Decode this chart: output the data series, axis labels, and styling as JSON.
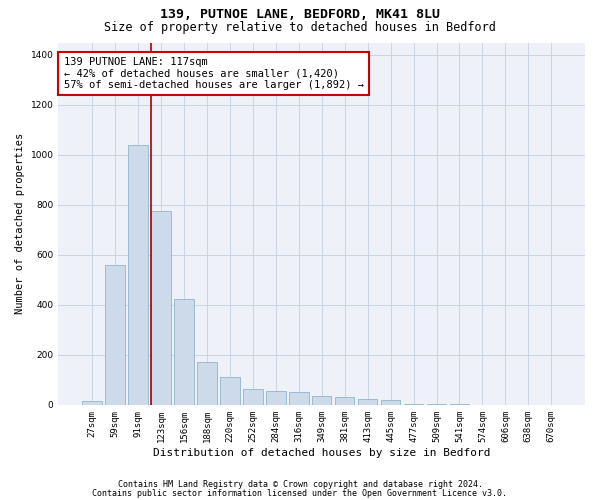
{
  "title": "139, PUTNOE LANE, BEDFORD, MK41 8LU",
  "subtitle": "Size of property relative to detached houses in Bedford",
  "xlabel": "Distribution of detached houses by size in Bedford",
  "ylabel": "Number of detached properties",
  "footnote1": "Contains HM Land Registry data © Crown copyright and database right 2024.",
  "footnote2": "Contains public sector information licensed under the Open Government Licence v3.0.",
  "bar_color": "#ccdaea",
  "bar_edge_color": "#90b4cc",
  "annotation_box_color": "#cc0000",
  "vline_color": "#aa0000",
  "grid_color": "#c8d4e4",
  "background_color": "#eef2f8",
  "categories": [
    "27sqm",
    "59sqm",
    "91sqm",
    "123sqm",
    "156sqm",
    "188sqm",
    "220sqm",
    "252sqm",
    "284sqm",
    "316sqm",
    "349sqm",
    "381sqm",
    "413sqm",
    "445sqm",
    "477sqm",
    "509sqm",
    "541sqm",
    "574sqm",
    "606sqm",
    "638sqm",
    "670sqm"
  ],
  "values": [
    15,
    560,
    1040,
    775,
    425,
    170,
    110,
    65,
    55,
    50,
    35,
    30,
    25,
    20,
    5,
    3,
    2,
    1,
    1,
    0,
    0
  ],
  "ylim": [
    0,
    1450
  ],
  "yticks": [
    0,
    200,
    400,
    600,
    800,
    1000,
    1200,
    1400
  ],
  "vline_position": 2.58,
  "annotation_text_line1": "139 PUTNOE LANE: 117sqm",
  "annotation_text_line2": "← 42% of detached houses are smaller (1,420)",
  "annotation_text_line3": "57% of semi-detached houses are larger (1,892) →",
  "title_fontsize": 9.5,
  "subtitle_fontsize": 8.5,
  "tick_fontsize": 6.5,
  "ylabel_fontsize": 7.5,
  "xlabel_fontsize": 8,
  "annotation_fontsize": 7.5,
  "footnote_fontsize": 6
}
